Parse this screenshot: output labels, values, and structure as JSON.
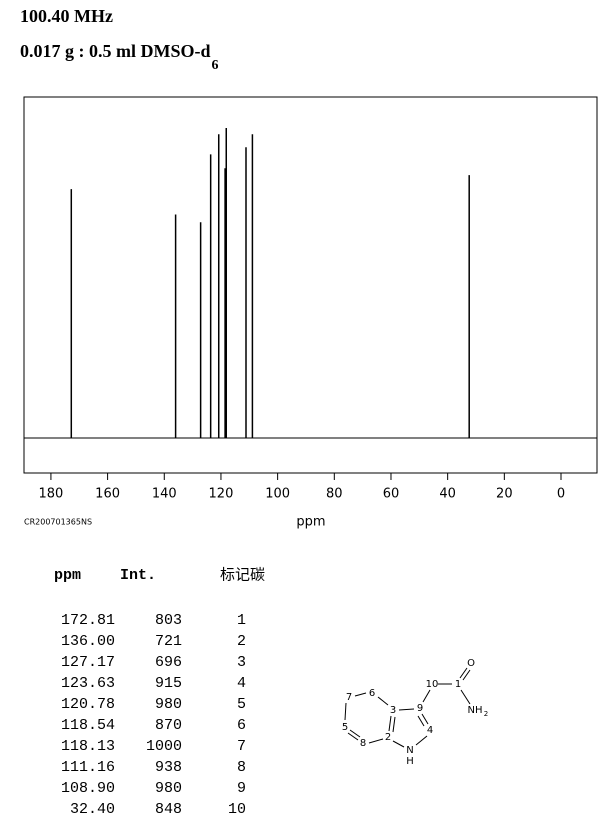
{
  "header": {
    "frequency": "100.40 MHz",
    "sample": "0.017 g : 0.5 ml DMSO-d",
    "sample_subscript": "6"
  },
  "chart_data": {
    "type": "stem",
    "x_label": "ppm",
    "code": "CR200701365NS",
    "x": [
      172.81,
      136.0,
      127.17,
      123.63,
      120.78,
      118.54,
      118.13,
      111.16,
      108.9,
      32.4
    ],
    "values": [
      803,
      721,
      696,
      915,
      980,
      870,
      1000,
      938,
      980,
      848
    ],
    "color": "#000000",
    "xlim": [
      189.5,
      -12.7
    ],
    "xticks": [
      180,
      160,
      140,
      120,
      100,
      80,
      60,
      40,
      20,
      0
    ],
    "ylim": [
      -113,
      1100
    ]
  },
  "table": {
    "headers": [
      "ppm",
      "Int.",
      "标记碳"
    ],
    "rows": [
      [
        "172.81",
        "803",
        "1"
      ],
      [
        "136.00",
        "721",
        "2"
      ],
      [
        "127.17",
        "696",
        "3"
      ],
      [
        "123.63",
        "915",
        "4"
      ],
      [
        "120.78",
        "980",
        "5"
      ],
      [
        "118.54",
        "870",
        "6"
      ],
      [
        "118.13",
        "1000",
        "7"
      ],
      [
        "111.16",
        "938",
        "8"
      ],
      [
        "108.90",
        "980",
        "9"
      ],
      [
        "32.40",
        "848",
        "10"
      ]
    ]
  },
  "structure": {
    "labels": [
      "O",
      "1",
      "10",
      "NH",
      "2",
      "9",
      "3",
      "6",
      "7",
      "5",
      "8",
      "2",
      "4",
      "N",
      "H"
    ]
  }
}
